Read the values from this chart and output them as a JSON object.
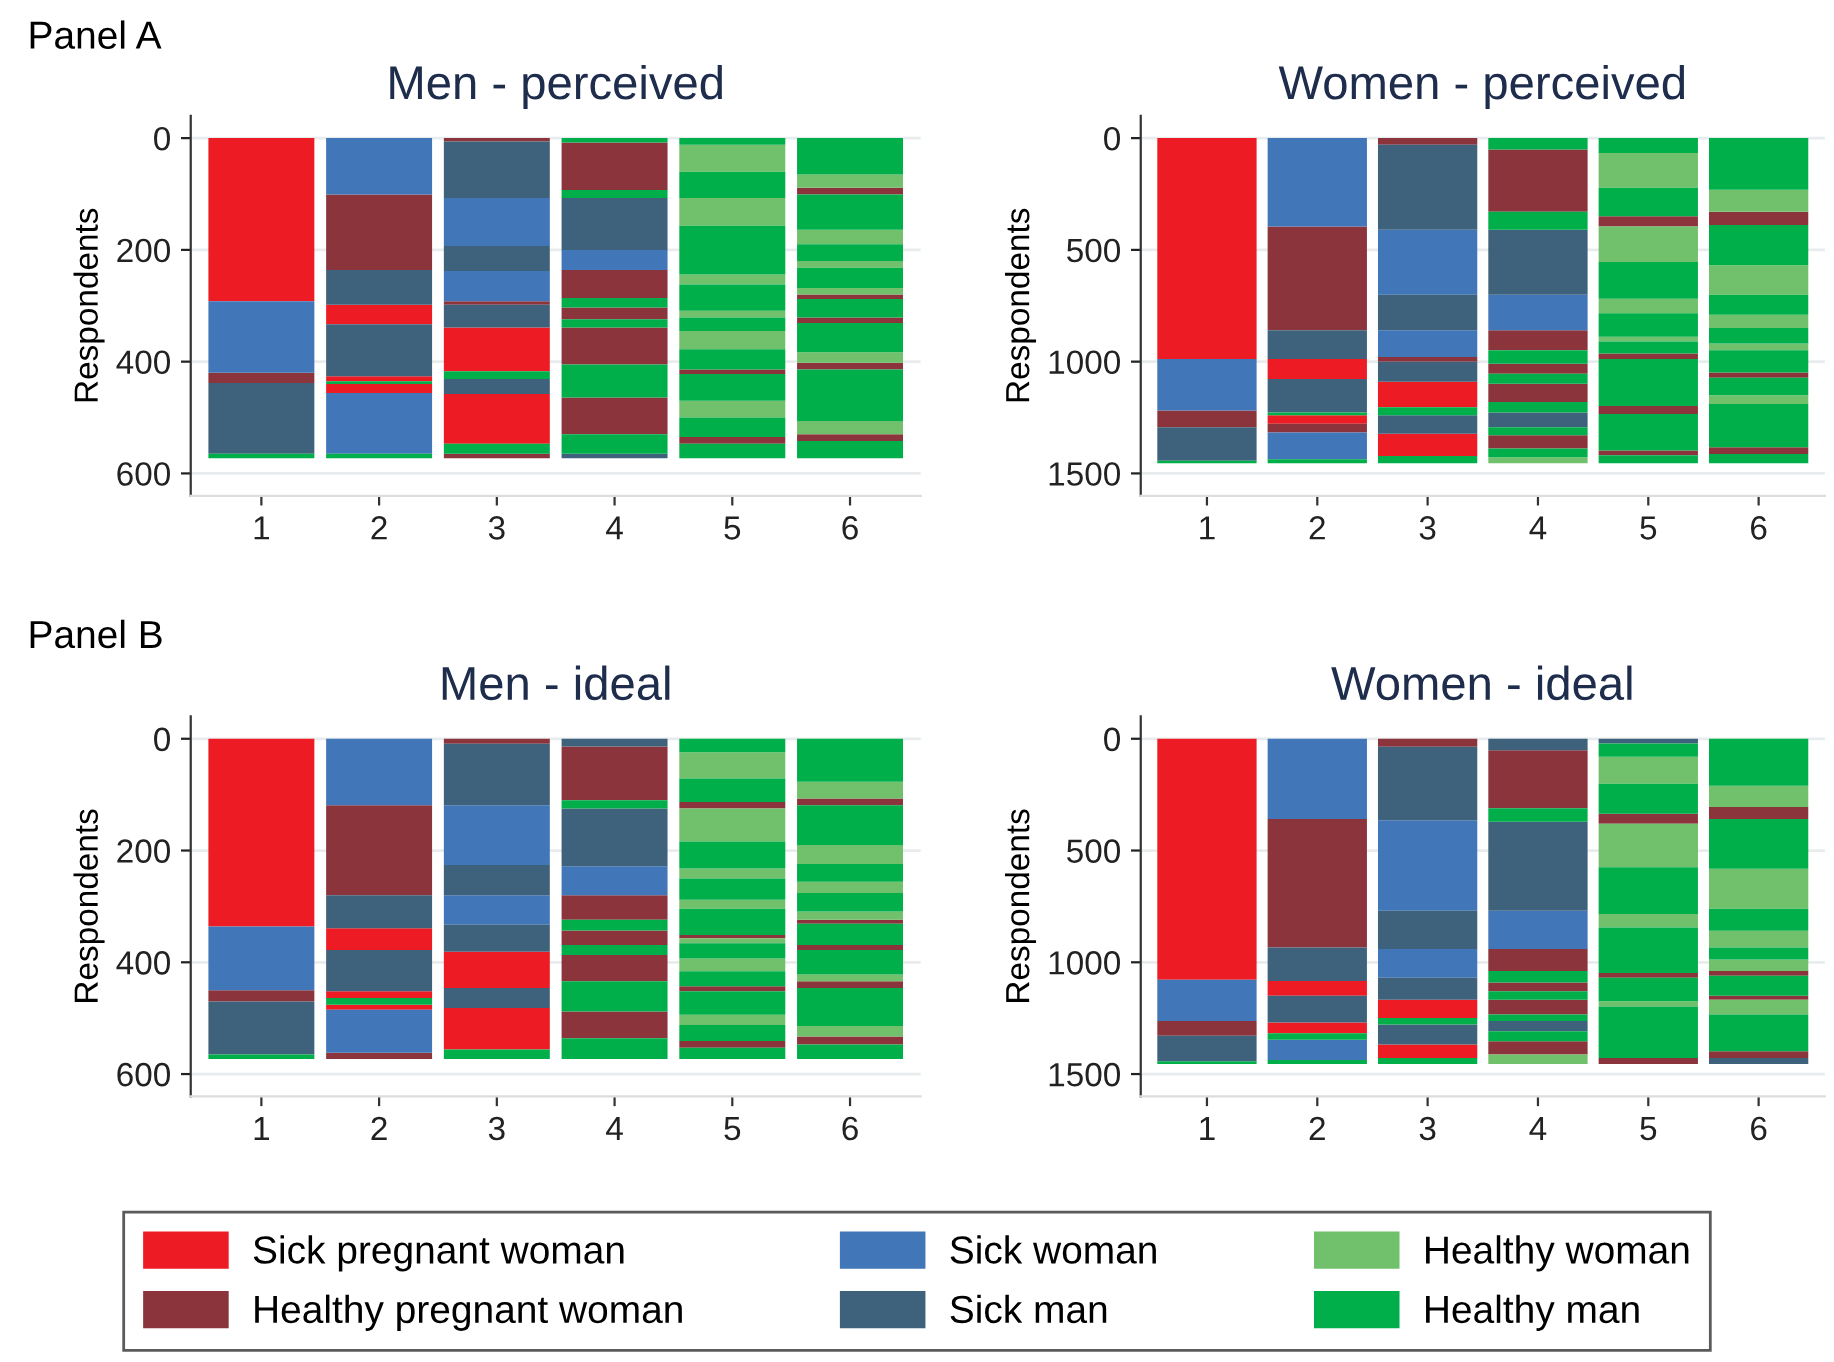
{
  "chart_data": [
    {
      "type": "bar",
      "title": "Men - perceived",
      "ylabel": "Respondents",
      "annotations": [
        "Panel A"
      ],
      "xlim": [
        0.4,
        6.6
      ],
      "xticks": [
        1,
        2,
        3,
        4,
        5,
        6
      ],
      "ylim": [
        640,
        -40
      ],
      "yticks": [
        0,
        200,
        400,
        600
      ],
      "grid": "y",
      "legend": "bottom",
      "series": [
        {
          "name": "Sick pregnant woman",
          "color": "#ed1c24",
          "x": [
            1,
            2,
            3
          ],
          "base": [
            0,
            298,
            339
          ],
          "values": [
            292,
            35,
            78
          ]
        },
        {
          "color": "#ed1c24",
          "x": [
            2,
            3
          ],
          "base": [
            426,
            458
          ],
          "values": [
            9,
            89
          ]
        },
        {
          "color": "#ed1c24",
          "x": [
            2
          ],
          "base": [
            440
          ],
          "values": [
            16
          ]
        },
        {
          "name": "Healthy pregnant woman",
          "color": "#8c343c",
          "x": [
            1,
            2,
            3,
            4,
            5,
            6
          ],
          "base": [
            420,
            101,
            0,
            8,
            414,
            89
          ],
          "values": [
            18,
            135,
            6,
            85,
            8,
            12
          ]
        },
        {
          "color": "#8c343c",
          "x": [
            3,
            4,
            5,
            6
          ],
          "base": [
            292,
            236,
            535,
            280
          ],
          "values": [
            6,
            50,
            12,
            8
          ]
        },
        {
          "color": "#8c343c",
          "x": [
            3,
            4,
            6
          ],
          "base": [
            565,
            303,
            321
          ],
          "values": [
            8,
            21,
            10
          ]
        },
        {
          "color": "#8c343c",
          "x": [
            4,
            6
          ],
          "base": [
            339,
            402
          ],
          "values": [
            66,
            12
          ]
        },
        {
          "color": "#8c343c",
          "x": [
            4,
            6
          ],
          "base": [
            464,
            530
          ],
          "values": [
            66,
            12
          ]
        },
        {
          "name": "Sick woman",
          "color": "#4176b8",
          "x": [
            1,
            2,
            3,
            4
          ],
          "base": [
            292,
            0,
            107,
            200
          ],
          "values": [
            128,
            101,
            86,
            36
          ]
        },
        {
          "color": "#4176b8",
          "x": [
            2,
            3
          ],
          "base": [
            456,
            238
          ],
          "values": [
            109,
            54
          ]
        },
        {
          "name": "Sick man",
          "color": "#3f627c",
          "x": [
            1,
            2,
            3,
            4
          ],
          "base": [
            438,
            236,
            6,
            107
          ],
          "values": [
            127,
            62,
            101,
            93
          ]
        },
        {
          "color": "#3f627c",
          "x": [
            2,
            3,
            4
          ],
          "base": [
            333,
            193,
            565
          ],
          "values": [
            93,
            45,
            8
          ]
        },
        {
          "color": "#3f627c",
          "x": [
            3
          ],
          "base": [
            298
          ],
          "values": [
            41
          ]
        },
        {
          "color": "#3f627c",
          "x": [
            3
          ],
          "base": [
            431
          ],
          "values": [
            27
          ]
        },
        {
          "name": "Healthy woman",
          "color": "#71c06b",
          "x": [
            5,
            6
          ],
          "base": [
            12,
            65
          ],
          "values": [
            48,
            24
          ]
        },
        {
          "color": "#71c06b",
          "x": [
            5,
            6
          ],
          "base": [
            107,
            164
          ],
          "values": [
            50,
            26
          ]
        },
        {
          "color": "#71c06b",
          "x": [
            5,
            6
          ],
          "base": [
            244,
            220
          ],
          "values": [
            18,
            12
          ]
        },
        {
          "color": "#71c06b",
          "x": [
            5,
            6
          ],
          "base": [
            309,
            268
          ],
          "values": [
            12,
            12
          ]
        },
        {
          "color": "#71c06b",
          "x": [
            5,
            6
          ],
          "base": [
            345,
            383
          ],
          "values": [
            33,
            19
          ]
        },
        {
          "color": "#71c06b",
          "x": [
            5,
            6
          ],
          "base": [
            470,
            506
          ],
          "values": [
            30,
            24
          ]
        },
        {
          "name": "Healthy man",
          "color": "#00ae4a",
          "x": [
            1,
            2,
            3,
            4,
            5,
            6
          ],
          "base": [
            565,
            435,
            417,
            0,
            0,
            0
          ],
          "values": [
            8,
            5,
            14,
            8,
            12,
            65
          ]
        },
        {
          "color": "#00ae4a",
          "x": [
            2,
            3,
            4,
            5,
            6
          ],
          "base": [
            565,
            547,
            93,
            60,
            101
          ],
          "values": [
            8,
            18,
            14,
            47,
            63
          ]
        },
        {
          "color": "#00ae4a",
          "x": [
            4,
            5,
            6
          ],
          "base": [
            286,
            157,
            190
          ],
          "values": [
            17,
            87,
            30
          ]
        },
        {
          "color": "#00ae4a",
          "x": [
            4,
            5,
            6
          ],
          "base": [
            324,
            262,
            232
          ],
          "values": [
            15,
            47,
            36
          ]
        },
        {
          "color": "#00ae4a",
          "x": [
            4,
            5,
            6
          ],
          "base": [
            405,
            321,
            288
          ],
          "values": [
            59,
            24,
            33
          ]
        },
        {
          "color": "#00ae4a",
          "x": [
            4,
            5,
            6
          ],
          "base": [
            530,
            378,
            331
          ],
          "values": [
            35,
            36,
            52
          ]
        },
        {
          "color": "#00ae4a",
          "x": [
            5,
            6
          ],
          "base": [
            422,
            414
          ],
          "values": [
            48,
            92
          ]
        },
        {
          "color": "#00ae4a",
          "x": [
            5,
            6
          ],
          "base": [
            500,
            542
          ],
          "values": [
            35,
            31
          ]
        },
        {
          "color": "#00ae4a",
          "x": [
            5
          ],
          "base": [
            547
          ],
          "values": [
            26
          ]
        }
      ]
    },
    {
      "type": "bar",
      "title": "Women - perceived",
      "ylabel": "Respondents",
      "xlim": [
        0.4,
        6.6
      ],
      "xticks": [
        1,
        2,
        3,
        4,
        5,
        6
      ],
      "ylim": [
        1600,
        -100
      ],
      "yticks": [
        0,
        500,
        1000,
        1500
      ],
      "grid": "y",
      "series": [
        {
          "color": "#ed1c24",
          "x": [
            1,
            2,
            3
          ],
          "base": [
            0,
            988,
            1090
          ],
          "values": [
            988,
            90,
            114
          ]
        },
        {
          "color": "#ed1c24",
          "x": [
            2,
            3
          ],
          "base": [
            1240,
            1323
          ],
          "values": [
            38,
            99
          ]
        },
        {
          "color": "#8c343c",
          "x": [
            1,
            2,
            3,
            4,
            5,
            6
          ],
          "base": [
            1219,
            395,
            0,
            51,
            350,
            329
          ],
          "values": [
            74,
            464,
            30,
            278,
            45,
            60
          ]
        },
        {
          "color": "#8c343c",
          "x": [
            2,
            3,
            4,
            5,
            6
          ],
          "base": [
            1278,
            979,
            859,
            964,
            1048
          ],
          "values": [
            39,
            21,
            90,
            24,
            24
          ]
        },
        {
          "color": "#8c343c",
          "x": [
            4,
            5,
            6
          ],
          "base": [
            1009,
            1198,
            1383
          ],
          "values": [
            45,
            36,
            30
          ]
        },
        {
          "color": "#8c343c",
          "x": [
            4,
            5
          ],
          "base": [
            1099,
            1398
          ],
          "values": [
            81,
            21
          ]
        },
        {
          "color": "#8c343c",
          "x": [
            4
          ],
          "base": [
            1329
          ],
          "values": [
            60
          ]
        },
        {
          "color": "#4176b8",
          "x": [
            1,
            2,
            3,
            4
          ],
          "base": [
            988,
            0,
            410,
            701
          ],
          "values": [
            231,
            395,
            291,
            158
          ]
        },
        {
          "color": "#4176b8",
          "x": [
            2,
            3
          ],
          "base": [
            1317,
            859
          ],
          "values": [
            120,
            120
          ]
        },
        {
          "color": "#3f627c",
          "x": [
            1,
            2,
            3,
            4
          ],
          "base": [
            1293,
            859,
            30,
            410
          ],
          "values": [
            150,
            129,
            380,
            291
          ]
        },
        {
          "color": "#3f627c",
          "x": [
            2,
            3,
            4
          ],
          "base": [
            1078,
            701,
            1228
          ],
          "values": [
            150,
            158,
            65
          ]
        },
        {
          "color": "#3f627c",
          "x": [
            3
          ],
          "base": [
            1000
          ],
          "values": [
            90
          ]
        },
        {
          "color": "#3f627c",
          "x": [
            3
          ],
          "base": [
            1240
          ],
          "values": [
            83
          ]
        },
        {
          "color": "#71c06b",
          "x": [
            4,
            5,
            6
          ],
          "base": [
            1428,
            66,
            231
          ],
          "values": [
            27,
            156,
            98
          ]
        },
        {
          "color": "#71c06b",
          "x": [
            5,
            6
          ],
          "base": [
            395,
            569
          ],
          "values": [
            159,
            132
          ]
        },
        {
          "color": "#71c06b",
          "x": [
            5,
            6
          ],
          "base": [
            719,
            790
          ],
          "values": [
            65,
            60
          ]
        },
        {
          "color": "#71c06b",
          "x": [
            5,
            6
          ],
          "base": [
            889,
            919
          ],
          "values": [
            21,
            30
          ]
        },
        {
          "color": "#71c06b",
          "x": [
            6
          ],
          "base": [
            1150
          ],
          "values": [
            39
          ]
        },
        {
          "color": "#00ae4a",
          "x": [
            1,
            2,
            3,
            4,
            5,
            6
          ],
          "base": [
            1443,
            1228,
            1204,
            0,
            0,
            0
          ],
          "values": [
            12,
            12,
            36,
            51,
            66,
            231
          ]
        },
        {
          "color": "#00ae4a",
          "x": [
            2,
            3,
            4,
            5,
            6
          ],
          "base": [
            1437,
            1422,
            329,
            222,
            389
          ],
          "values": [
            18,
            33,
            81,
            128,
            180
          ]
        },
        {
          "color": "#00ae4a",
          "x": [
            4,
            5,
            6
          ],
          "base": [
            949,
            554,
            701
          ],
          "values": [
            60,
            165,
            89
          ]
        },
        {
          "color": "#00ae4a",
          "x": [
            4,
            5,
            6
          ],
          "base": [
            1054,
            784,
            850
          ],
          "values": [
            45,
            105,
            69
          ]
        },
        {
          "color": "#00ae4a",
          "x": [
            4,
            5,
            6
          ],
          "base": [
            1180,
            910,
            949
          ],
          "values": [
            48,
            54,
            99
          ]
        },
        {
          "color": "#00ae4a",
          "x": [
            4,
            5,
            6
          ],
          "base": [
            1293,
            988,
            1072
          ],
          "values": [
            36,
            210,
            78
          ]
        },
        {
          "color": "#00ae4a",
          "x": [
            4,
            5,
            6
          ],
          "base": [
            1389,
            1234,
            1189
          ],
          "values": [
            39,
            164,
            194
          ]
        },
        {
          "color": "#00ae4a",
          "x": [
            5,
            6
          ],
          "base": [
            1419,
            1413
          ],
          "values": [
            36,
            42
          ]
        }
      ]
    },
    {
      "type": "bar",
      "title": "Men - ideal",
      "ylabel": "Respondents",
      "annotations": [
        "Panel B"
      ],
      "xlim": [
        0.4,
        6.6
      ],
      "xticks": [
        1,
        2,
        3,
        4,
        5,
        6
      ],
      "ylim": [
        640,
        -40
      ],
      "yticks": [
        0,
        200,
        400,
        600
      ],
      "grid": "y",
      "series": [
        {
          "color": "#ed1c24",
          "x": [
            1,
            2,
            3
          ],
          "base": [
            0,
            339,
            381
          ],
          "values": [
            336,
            39,
            65
          ]
        },
        {
          "color": "#ed1c24",
          "x": [
            2,
            3
          ],
          "base": [
            452,
            482
          ],
          "values": [
            12,
            74
          ]
        },
        {
          "color": "#ed1c24",
          "x": [
            2
          ],
          "base": [
            476
          ],
          "values": [
            9
          ]
        },
        {
          "color": "#8c343c",
          "x": [
            1,
            2,
            3,
            4,
            5,
            6
          ],
          "base": [
            450,
            119,
            0,
            14,
            113,
            107
          ],
          "values": [
            20,
            161,
            9,
            96,
            12,
            12
          ]
        },
        {
          "color": "#8c343c",
          "x": [
            2,
            4,
            5,
            6
          ],
          "base": [
            562,
            280,
            351,
            324
          ],
          "values": [
            11,
            44,
            6,
            7
          ]
        },
        {
          "color": "#8c343c",
          "x": [
            4,
            5,
            6
          ],
          "base": [
            343,
            443,
            369
          ],
          "values": [
            26,
            9,
            9
          ]
        },
        {
          "color": "#8c343c",
          "x": [
            4,
            5,
            6
          ],
          "base": [
            387,
            541,
            434
          ],
          "values": [
            47,
            12,
            12
          ]
        },
        {
          "color": "#8c343c",
          "x": [
            4,
            6
          ],
          "base": [
            488,
            533
          ],
          "values": [
            48,
            14
          ]
        },
        {
          "color": "#4176b8",
          "x": [
            1,
            2,
            3,
            4
          ],
          "base": [
            336,
            0,
            119,
            228
          ],
          "values": [
            114,
            119,
            107,
            52
          ]
        },
        {
          "color": "#4176b8",
          "x": [
            2,
            3
          ],
          "base": [
            485,
            280
          ],
          "values": [
            77,
            53
          ]
        },
        {
          "color": "#3f627c",
          "x": [
            1,
            2,
            3,
            4
          ],
          "base": [
            470,
            280,
            9,
            0
          ],
          "values": [
            95,
            59,
            110,
            14
          ]
        },
        {
          "color": "#3f627c",
          "x": [
            2,
            3,
            4
          ],
          "base": [
            378,
            226,
            125
          ],
          "values": [
            74,
            54,
            103
          ]
        },
        {
          "color": "#3f627c",
          "x": [
            3
          ],
          "base": [
            333
          ],
          "values": [
            48
          ]
        },
        {
          "color": "#3f627c",
          "x": [
            3
          ],
          "base": [
            446
          ],
          "values": [
            36
          ]
        },
        {
          "color": "#71c06b",
          "x": [
            5,
            6
          ],
          "base": [
            24,
            77
          ],
          "values": [
            47,
            30
          ]
        },
        {
          "color": "#71c06b",
          "x": [
            5,
            6
          ],
          "base": [
            125,
            190
          ],
          "values": [
            59,
            34
          ]
        },
        {
          "color": "#71c06b",
          "x": [
            5,
            6
          ],
          "base": [
            232,
            256
          ],
          "values": [
            18,
            20
          ]
        },
        {
          "color": "#71c06b",
          "x": [
            5,
            6
          ],
          "base": [
            288,
            309
          ],
          "values": [
            16,
            15
          ]
        },
        {
          "color": "#71c06b",
          "x": [
            5,
            6
          ],
          "base": [
            357,
            422
          ],
          "values": [
            9,
            12
          ]
        },
        {
          "color": "#71c06b",
          "x": [
            5,
            6
          ],
          "base": [
            393,
            514
          ],
          "values": [
            23,
            19
          ]
        },
        {
          "color": "#71c06b",
          "x": [
            5
          ],
          "base": [
            494
          ],
          "values": [
            18
          ]
        },
        {
          "color": "#00ae4a",
          "x": [
            1,
            2,
            3,
            4,
            5,
            6
          ],
          "base": [
            565,
            464,
            556,
            110,
            0,
            0
          ],
          "values": [
            8,
            12,
            17,
            15,
            24,
            77
          ]
        },
        {
          "color": "#00ae4a",
          "x": [
            4,
            5,
            6
          ],
          "base": [
            324,
            71,
            119
          ],
          "values": [
            19,
            42,
            71
          ]
        },
        {
          "color": "#00ae4a",
          "x": [
            4,
            5,
            6
          ],
          "base": [
            369,
            184,
            224
          ],
          "values": [
            18,
            48,
            32
          ]
        },
        {
          "color": "#00ae4a",
          "x": [
            4,
            5,
            6
          ],
          "base": [
            434,
            250,
            276
          ],
          "values": [
            54,
            38,
            33
          ]
        },
        {
          "color": "#00ae4a",
          "x": [
            4,
            5,
            6
          ],
          "base": [
            536,
            304,
            331
          ],
          "values": [
            37,
            47,
            38
          ]
        },
        {
          "color": "#00ae4a",
          "x": [
            5,
            6
          ],
          "base": [
            366,
            378
          ],
          "values": [
            27,
            44
          ]
        },
        {
          "color": "#00ae4a",
          "x": [
            5,
            6
          ],
          "base": [
            416,
            446
          ],
          "values": [
            27,
            68
          ]
        },
        {
          "color": "#00ae4a",
          "x": [
            5,
            6
          ],
          "base": [
            452,
            547
          ],
          "values": [
            42,
            26
          ]
        },
        {
          "color": "#00ae4a",
          "x": [
            5
          ],
          "base": [
            512
          ],
          "values": [
            29
          ]
        },
        {
          "color": "#00ae4a",
          "x": [
            5
          ],
          "base": [
            553
          ],
          "values": [
            20
          ]
        }
      ]
    },
    {
      "type": "bar",
      "title": "Women - ideal",
      "ylabel": "Respondents",
      "xlim": [
        0.4,
        6.6
      ],
      "xticks": [
        1,
        2,
        3,
        4,
        5,
        6
      ],
      "ylim": [
        1600,
        -100
      ],
      "yticks": [
        0,
        500,
        1000,
        1500
      ],
      "grid": "y",
      "series": [
        {
          "color": "#ed1c24",
          "x": [
            1,
            2,
            3
          ],
          "base": [
            0,
            1084,
            1168
          ],
          "values": [
            1078,
            66,
            81
          ]
        },
        {
          "color": "#ed1c24",
          "x": [
            2,
            3
          ],
          "base": [
            1269,
            1368
          ],
          "values": [
            48,
            60
          ]
        },
        {
          "color": "#8c343c",
          "x": [
            1,
            2,
            3,
            4,
            5,
            6
          ],
          "base": [
            1263,
            359,
            0,
            51,
            335,
            305
          ],
          "values": [
            66,
            575,
            36,
            260,
            45,
            54
          ]
        },
        {
          "color": "#8c343c",
          "x": [
            4,
            5,
            6
          ],
          "base": [
            940,
            1048,
            1039
          ],
          "values": [
            99,
            21,
            21
          ]
        },
        {
          "color": "#8c343c",
          "x": [
            4,
            5,
            6
          ],
          "base": [
            1090,
            1428,
            1150
          ],
          "values": [
            39,
            27,
            18
          ]
        },
        {
          "color": "#8c343c",
          "x": [
            4,
            6
          ],
          "base": [
            1168,
            1398
          ],
          "values": [
            66,
            30
          ]
        },
        {
          "color": "#8c343c",
          "x": [
            4
          ],
          "base": [
            1353
          ],
          "values": [
            60
          ]
        },
        {
          "color": "#4176b8",
          "x": [
            1,
            2,
            3,
            4
          ],
          "base": [
            1078,
            0,
            365,
            769
          ],
          "values": [
            185,
            359,
            404,
            171
          ]
        },
        {
          "color": "#4176b8",
          "x": [
            2,
            3
          ],
          "base": [
            1347,
            940
          ],
          "values": [
            90,
            129
          ]
        },
        {
          "color": "#3f627c",
          "x": [
            1,
            2,
            3,
            4,
            5,
            6
          ],
          "base": [
            1329,
            934,
            36,
            0,
            0,
            1428
          ],
          "values": [
            114,
            150,
            329,
            51,
            21,
            27
          ]
        },
        {
          "color": "#3f627c",
          "x": [
            2,
            3,
            4
          ],
          "base": [
            1150,
            769,
            371
          ],
          "values": [
            119,
            171,
            398
          ]
        },
        {
          "color": "#3f627c",
          "x": [
            3,
            4
          ],
          "base": [
            1069,
            1263
          ],
          "values": [
            99,
            45
          ]
        },
        {
          "color": "#3f627c",
          "x": [
            3
          ],
          "base": [
            1278
          ],
          "values": [
            90
          ]
        },
        {
          "color": "#71c06b",
          "x": [
            4,
            5,
            6
          ],
          "base": [
            1413,
            81,
            210
          ],
          "values": [
            42,
            120,
            95
          ]
        },
        {
          "color": "#71c06b",
          "x": [
            5,
            6
          ],
          "base": [
            380,
            581
          ],
          "values": [
            195,
            179
          ]
        },
        {
          "color": "#71c06b",
          "x": [
            5,
            6
          ],
          "base": [
            784,
            859
          ],
          "values": [
            60,
            75
          ]
        },
        {
          "color": "#71c06b",
          "x": [
            5,
            6
          ],
          "base": [
            1174,
            988
          ],
          "values": [
            24,
            51
          ]
        },
        {
          "color": "#71c06b",
          "x": [
            6
          ],
          "base": [
            1168
          ],
          "values": [
            66
          ]
        },
        {
          "color": "#00ae4a",
          "x": [
            1,
            2,
            3,
            4,
            5,
            6
          ],
          "base": [
            1443,
            1317,
            1249,
            311,
            21,
            0
          ],
          "values": [
            12,
            30,
            29,
            60,
            60,
            210
          ]
        },
        {
          "color": "#00ae4a",
          "x": [
            2,
            3,
            4,
            5,
            6
          ],
          "base": [
            1437,
            1428,
            1039,
            201,
            359
          ],
          "values": [
            18,
            27,
            51,
            134,
            222
          ]
        },
        {
          "color": "#00ae4a",
          "x": [
            4,
            5,
            6
          ],
          "base": [
            1129,
            575,
            760
          ],
          "values": [
            39,
            209,
            99
          ]
        },
        {
          "color": "#00ae4a",
          "x": [
            4,
            5,
            6
          ],
          "base": [
            1234,
            844,
            934
          ],
          "values": [
            29,
            204,
            54
          ]
        },
        {
          "color": "#00ae4a",
          "x": [
            4,
            5,
            6
          ],
          "base": [
            1308,
            1069,
            1060
          ],
          "values": [
            45,
            105,
            90
          ]
        },
        {
          "color": "#00ae4a",
          "x": [
            5,
            6
          ],
          "base": [
            1198,
            1234
          ],
          "values": [
            230,
            164
          ]
        }
      ]
    }
  ]
}
